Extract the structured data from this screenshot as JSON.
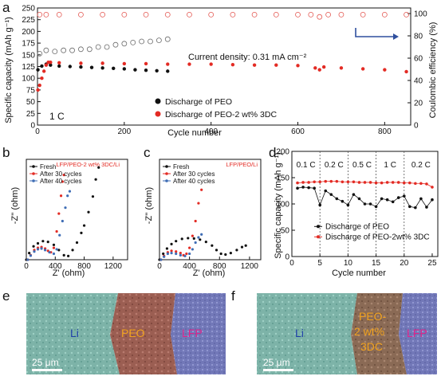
{
  "panels": {
    "a": "a",
    "b": "b",
    "c": "c",
    "d": "d",
    "e": "e",
    "f": "f"
  },
  "colors": {
    "peo": "#111111",
    "peo3dc": "#e32b24",
    "ce_peo": "#6b6b6b",
    "ce_peo3dc": "#e45a54",
    "right_axis": "#2f4f9e",
    "blue_curve": "#3f6db5"
  },
  "chart_data": [
    {
      "id": "a",
      "type": "scatter",
      "title": "",
      "xlabel": "Cycle number",
      "ylabel": "Specific capacity (mAh g⁻¹)",
      "y2label": "Coulombic efficiency (%)",
      "xlim": [
        0,
        860
      ],
      "ylim": [
        0,
        250
      ],
      "y2lim": [
        0,
        105
      ],
      "xticks": [
        0,
        200,
        400,
        600,
        800
      ],
      "yticks": [
        0,
        25,
        50,
        75,
        100,
        125,
        150,
        175,
        200,
        225,
        250
      ],
      "y2ticks": [
        0,
        20,
        40,
        60,
        80,
        100
      ],
      "annotation": "Current density: 0.31 mA cm⁻²",
      "rate_label": "1 C",
      "legend": [
        "Discharge of PEO",
        "Discharge of PEO-2 wt% 3DC"
      ],
      "legend_position": "bottom-center",
      "series": [
        {
          "name": "Discharge of PEO",
          "axis": "left",
          "style": "filled",
          "x": [
            1,
            10,
            20,
            30,
            50,
            75,
            100,
            125,
            150,
            175,
            200,
            225,
            250,
            275,
            300
          ],
          "y": [
            118,
            126,
            130,
            128,
            126,
            125,
            124,
            123,
            122,
            121,
            120,
            118,
            117,
            116,
            115
          ]
        },
        {
          "name": "Discharge of PEO-2 wt% 3DC",
          "axis": "left",
          "style": "filled",
          "x": [
            1,
            5,
            10,
            15,
            20,
            25,
            30,
            50,
            100,
            150,
            200,
            250,
            300,
            350,
            400,
            450,
            500,
            550,
            600,
            640,
            650,
            660,
            700,
            750,
            800,
            850
          ],
          "y": [
            75,
            85,
            100,
            115,
            128,
            134,
            134,
            133,
            132,
            132,
            131,
            131,
            130,
            130,
            130,
            129,
            128,
            128,
            127,
            122,
            118,
            124,
            122,
            120,
            118,
            114
          ]
        },
        {
          "name": "",
          "axis": "right",
          "style": "open",
          "x": [
            5,
            20,
            40,
            60,
            80,
            100,
            120,
            140,
            160,
            180,
            200,
            220,
            240,
            260,
            280,
            300
          ],
          "y": [
            64,
            67,
            66,
            67,
            67,
            68,
            68,
            70,
            70,
            72,
            73,
            74,
            75,
            75,
            76,
            77
          ]
        },
        {
          "name": "",
          "axis": "right",
          "style": "open",
          "x": [
            5,
            20,
            50,
            100,
            150,
            200,
            250,
            300,
            350,
            400,
            450,
            500,
            550,
            600,
            630,
            650,
            670,
            700,
            750,
            800,
            850
          ],
          "y": [
            99,
            99,
            99,
            99,
            99,
            99,
            99,
            99,
            99,
            99,
            99,
            99,
            99,
            99,
            99,
            97,
            99,
            99,
            99,
            99,
            99
          ]
        }
      ]
    },
    {
      "id": "b",
      "type": "scatter",
      "title": "LFP/PEO-2 wt% 3DC/Li",
      "xlabel": "Z' (ohm)",
      "ylabel": "-Z'' (ohm)",
      "xlim": [
        0,
        1400
      ],
      "ylim": [
        0,
        1350
      ],
      "xticks": [
        0,
        400,
        800,
        1200
      ],
      "legend": [
        "Fresh",
        "After 30 cycles",
        "After 40 cycles"
      ],
      "legend_position": "top-left",
      "series": [
        {
          "name": "Fresh",
          "color": "#111111",
          "x": [
            0,
            40,
            100,
            160,
            230,
            300,
            380,
            450,
            520,
            580,
            640,
            700,
            760,
            800,
            860,
            920,
            960,
            1000
          ],
          "y": [
            0,
            90,
            180,
            220,
            250,
            240,
            200,
            130,
            60,
            50,
            130,
            230,
            360,
            460,
            640,
            850,
            1080,
            1240
          ]
        },
        {
          "name": "After 30 cycles",
          "color": "#e32b24",
          "x": [
            20,
            60,
            110,
            160,
            210,
            260,
            300,
            340,
            380,
            420,
            450,
            480,
            500,
            520
          ],
          "y": [
            0,
            60,
            130,
            160,
            170,
            150,
            120,
            100,
            160,
            380,
            620,
            860,
            1050,
            1140
          ]
        },
        {
          "name": "After 40 cycles",
          "color": "#3f6db5",
          "x": [
            20,
            60,
            110,
            160,
            210,
            260,
            320,
            380,
            420,
            460,
            500,
            540,
            570,
            600
          ],
          "y": [
            0,
            55,
            110,
            140,
            150,
            130,
            100,
            80,
            140,
            330,
            520,
            700,
            860,
            920
          ]
        }
      ]
    },
    {
      "id": "c",
      "type": "scatter",
      "title": "LFP/PEO/Li",
      "xlabel": "Z' (ohm)",
      "ylabel": "-Z'' (ohm)",
      "xlim": [
        0,
        1350
      ],
      "ylim": [
        0,
        1350
      ],
      "xticks": [
        0,
        400,
        800,
        1200
      ],
      "legend": [
        "Fresh",
        "After 30 cycles",
        "After 40 cycles"
      ],
      "legend_position": "top-left",
      "series": [
        {
          "name": "Fresh",
          "color": "#111111",
          "x": [
            0,
            50,
            100,
            160,
            220,
            300,
            380,
            460,
            540,
            620,
            700,
            760,
            820,
            880,
            950,
            1030,
            1100,
            1150
          ],
          "y": [
            0,
            80,
            150,
            210,
            250,
            280,
            290,
            285,
            270,
            240,
            190,
            130,
            80,
            70,
            90,
            130,
            170,
            190
          ]
        },
        {
          "name": "After 30 cycles",
          "color": "#e32b24",
          "x": [
            20,
            60,
            110,
            160,
            220,
            280,
            320,
            360,
            400,
            440,
            480,
            520,
            560
          ],
          "y": [
            0,
            50,
            100,
            120,
            110,
            90,
            60,
            80,
            160,
            320,
            520,
            760,
            940
          ]
        },
        {
          "name": "After 40 cycles",
          "color": "#3f6db5",
          "x": [
            20,
            60,
            110,
            160,
            220,
            280,
            340,
            400,
            440,
            480,
            520,
            560
          ],
          "y": [
            0,
            40,
            80,
            90,
            80,
            60,
            50,
            80,
            140,
            230,
            300,
            340
          ]
        }
      ]
    },
    {
      "id": "d",
      "type": "scatter",
      "title": "",
      "xlabel": "Cycle number",
      "ylabel": "Specific capacity (mAh g⁻¹)",
      "xlim": [
        0,
        26
      ],
      "ylim": [
        0,
        200
      ],
      "xticks": [
        0,
        5,
        10,
        15,
        20,
        25
      ],
      "yticks": [
        0,
        50,
        100,
        150,
        200
      ],
      "regions": [
        "0.1 C",
        "0.2 C",
        "0.5 C",
        "1 C",
        "0.2 C"
      ],
      "region_bounds": [
        5,
        10,
        15,
        20
      ],
      "legend": [
        "Discharge of PEO",
        "Discharge of PEO-2wt% 3DC"
      ],
      "legend_position": "bottom-center",
      "series": [
        {
          "name": "Discharge of PEO",
          "color": "#111111",
          "x": [
            1,
            2,
            3,
            4,
            5,
            6,
            7,
            8,
            9,
            10,
            11,
            12,
            13,
            14,
            15,
            16,
            17,
            18,
            19,
            20,
            21,
            22,
            23,
            24,
            25
          ],
          "y": [
            130,
            132,
            131,
            130,
            98,
            125,
            118,
            110,
            105,
            98,
            118,
            110,
            100,
            100,
            95,
            110,
            108,
            104,
            112,
            115,
            95,
            93,
            110,
            94,
            108
          ]
        },
        {
          "name": "Discharge of PEO-2wt% 3DC",
          "color": "#e32b24",
          "x": [
            1,
            2,
            3,
            4,
            5,
            6,
            7,
            8,
            9,
            10,
            11,
            12,
            13,
            14,
            15,
            16,
            17,
            18,
            19,
            20,
            21,
            22,
            23,
            24,
            25
          ],
          "y": [
            140,
            141,
            141,
            142,
            142,
            143,
            143,
            143,
            142,
            142,
            142,
            141,
            141,
            141,
            140,
            140,
            141,
            141,
            141,
            140,
            140,
            139,
            139,
            138,
            132
          ]
        }
      ]
    }
  ],
  "sem": {
    "e": {
      "labels": [
        "Li",
        "PEO",
        "LFP"
      ],
      "scale": "25 μm"
    },
    "f": {
      "labels": [
        "Li",
        "PEO-",
        "2 wt%",
        "3DC",
        "LFP"
      ],
      "scale": "25 μm"
    }
  }
}
